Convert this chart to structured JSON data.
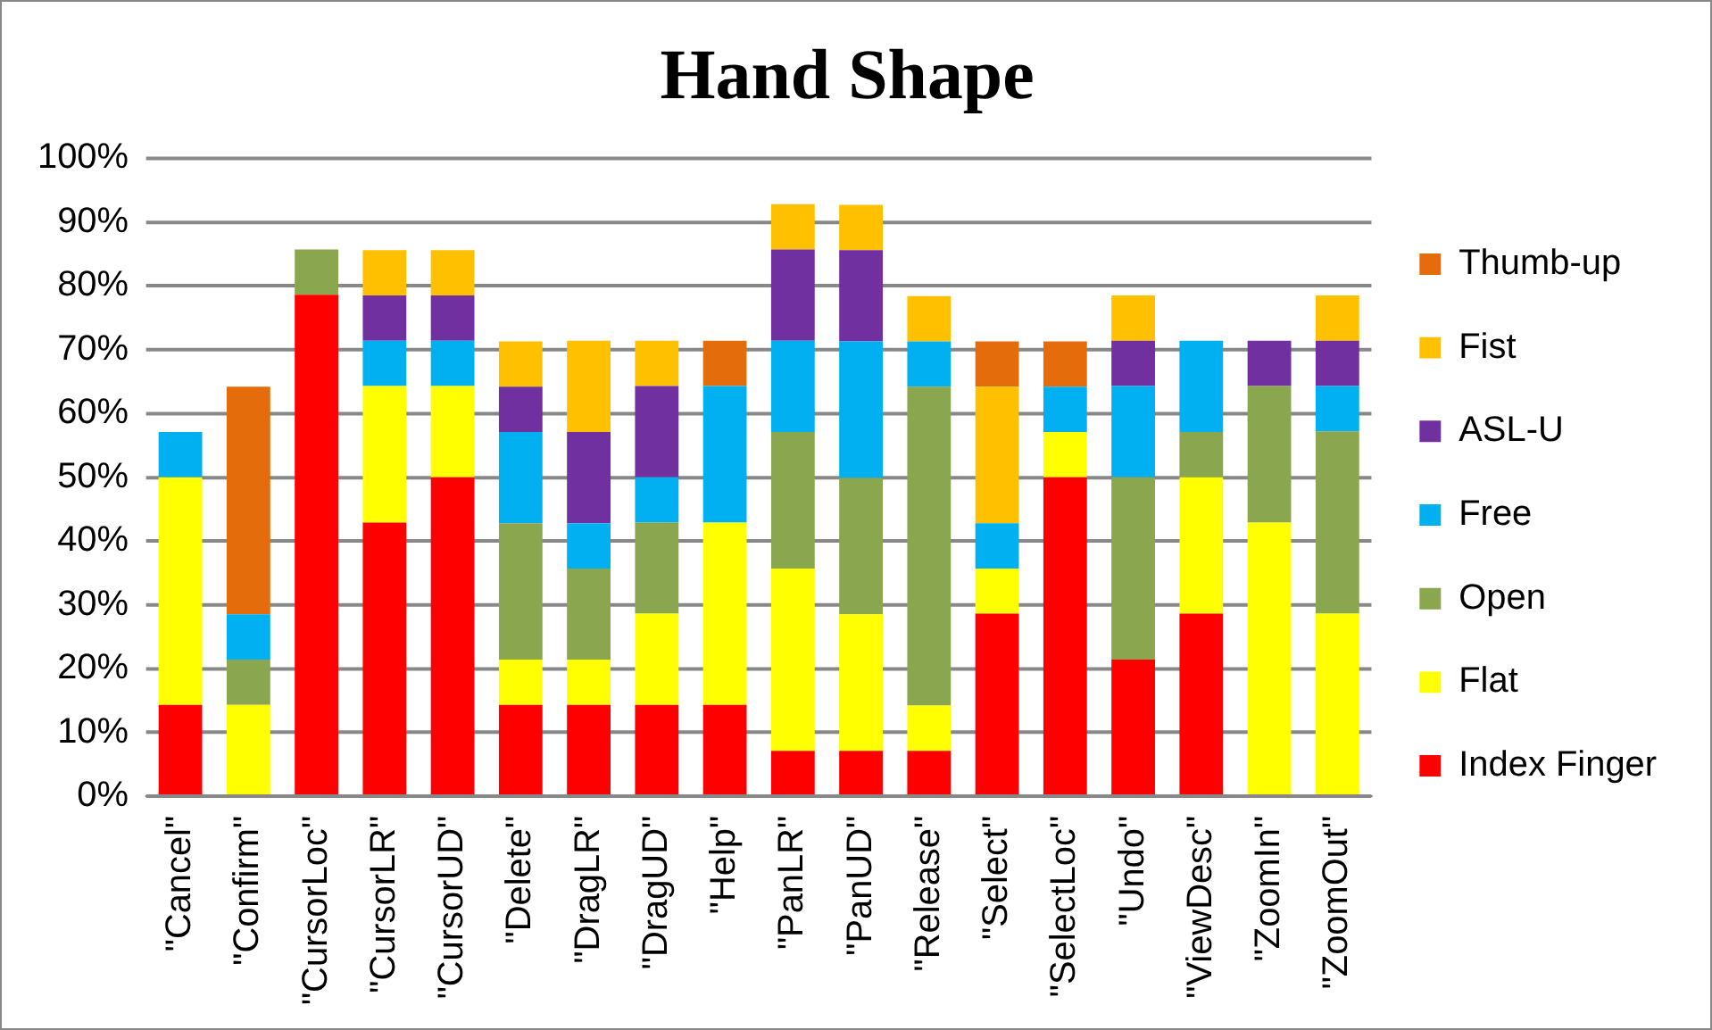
{
  "chart_data": {
    "type": "bar",
    "title": "Hand Shape",
    "stacked": true,
    "legend": "right",
    "grid": "y",
    "categories": [
      "\"Cancel\"",
      "\"Confirm\"",
      "\"CursorLoc\"",
      "\"CursorLR\"",
      "\"CursorUD\"",
      "\"Delete\"",
      "\"DragLR\"",
      "\"DragUD\"",
      "\"Help\"",
      "\"PanLR\"",
      "\"PanUD\"",
      "\"Release\"",
      "\"Select\"",
      "\"SelectLoc\"",
      "\"Undo\"",
      "\"ViewDesc\"",
      "\"ZoomIn\"",
      "\"ZoomOut\""
    ],
    "ylim": [
      0,
      100
    ],
    "yticks": [
      {
        "value": 0,
        "label": "0%"
      },
      {
        "value": 10,
        "label": "10%"
      },
      {
        "value": 20,
        "label": "20%"
      },
      {
        "value": 30,
        "label": "30%"
      },
      {
        "value": 40,
        "label": "40%"
      },
      {
        "value": 50,
        "label": "50%"
      },
      {
        "value": 60,
        "label": "60%"
      },
      {
        "value": 70,
        "label": "70%"
      },
      {
        "value": 80,
        "label": "80%"
      },
      {
        "value": 90,
        "label": "90%"
      },
      {
        "value": 100,
        "label": "100%"
      }
    ],
    "series": [
      {
        "name": "Index Finger",
        "color": "#ff0000",
        "values": [
          14.3,
          0,
          78.6,
          42.9,
          50,
          14.3,
          14.3,
          14.3,
          14.3,
          7.1,
          7.1,
          7.1,
          28.6,
          50,
          21.4,
          28.6,
          0,
          0
        ]
      },
      {
        "name": "Flat",
        "color": "#ffff00",
        "values": [
          35.7,
          14.3,
          0,
          21.4,
          14.3,
          7.1,
          7.1,
          14.3,
          28.6,
          28.6,
          21.4,
          7.1,
          7.1,
          7.1,
          0,
          21.4,
          42.9,
          28.6
        ]
      },
      {
        "name": "Open",
        "color": "#8aa64e",
        "values": [
          0,
          7.1,
          7.1,
          0,
          0,
          21.4,
          14.3,
          14.3,
          0,
          21.4,
          21.4,
          50,
          0,
          0,
          28.6,
          7.1,
          21.4,
          28.6
        ]
      },
      {
        "name": "Free",
        "color": "#00b0f0",
        "values": [
          7.1,
          7.1,
          0,
          7.1,
          7.1,
          14.3,
          7.1,
          7.1,
          21.4,
          14.3,
          21.4,
          7.1,
          7.1,
          7.1,
          14.3,
          14.3,
          0,
          7.1
        ]
      },
      {
        "name": "ASL-U",
        "color": "#7030a0",
        "values": [
          0,
          0,
          0,
          7.1,
          7.1,
          7.1,
          14.3,
          14.3,
          0,
          14.3,
          14.3,
          0,
          0,
          0,
          7.1,
          0,
          7.1,
          7.1
        ]
      },
      {
        "name": "Fist",
        "color": "#ffc000",
        "values": [
          0,
          0,
          0,
          7.1,
          7.1,
          7.1,
          14.3,
          7.1,
          0,
          7.1,
          7.1,
          7.1,
          21.4,
          0,
          7.1,
          0,
          0,
          7.1
        ]
      },
      {
        "name": "Thumb-up",
        "color": "#e46c0a",
        "values": [
          0,
          35.7,
          0,
          0,
          0,
          0,
          0,
          0,
          7.1,
          0,
          0,
          0,
          7.1,
          7.1,
          0,
          0,
          0,
          0
        ]
      }
    ]
  }
}
